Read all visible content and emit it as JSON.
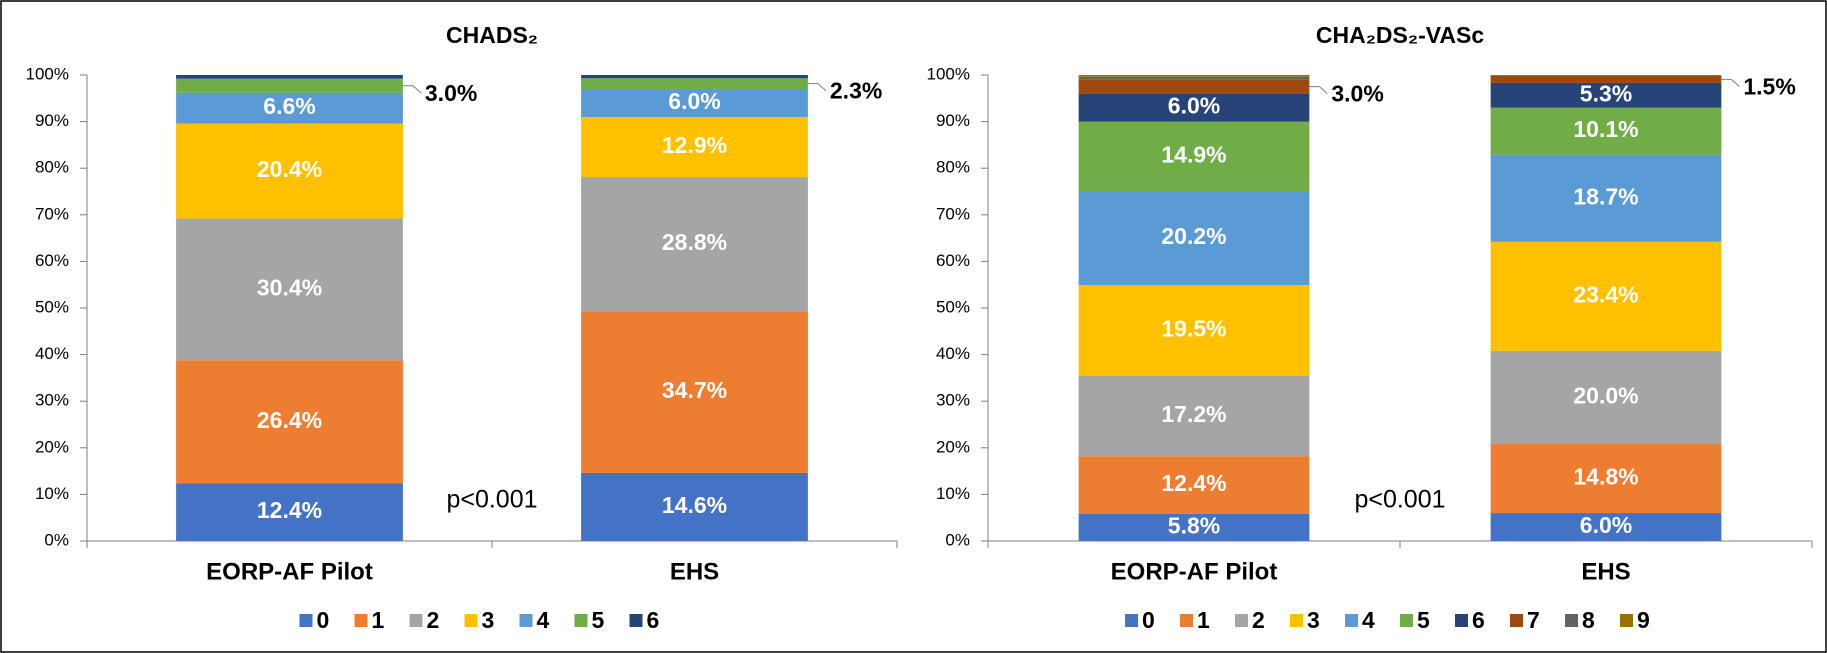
{
  "chart_data": [
    {
      "type": "stacked-bar",
      "title": "CHADS₂",
      "annotation": "p<0.001",
      "categories": [
        "EORP-AF Pilot",
        "EHS"
      ],
      "ylim": [
        0,
        100
      ],
      "yticks": [
        {
          "value": 0,
          "label": "0%"
        },
        {
          "value": 10,
          "label": "10%"
        },
        {
          "value": 20,
          "label": "20%"
        },
        {
          "value": 30,
          "label": "30%"
        },
        {
          "value": 40,
          "label": "40%"
        },
        {
          "value": 50,
          "label": "50%"
        },
        {
          "value": 60,
          "label": "60%"
        },
        {
          "value": 70,
          "label": "70%"
        },
        {
          "value": 80,
          "label": "80%"
        },
        {
          "value": 90,
          "label": "90%"
        },
        {
          "value": 100,
          "label": "100%"
        }
      ],
      "series": [
        {
          "name": "0",
          "color": "#4472c4",
          "values": [
            12.4,
            14.6
          ],
          "value_labels": [
            "12.4%",
            "14.6%"
          ]
        },
        {
          "name": "1",
          "color": "#ed7d31",
          "values": [
            26.4,
            34.7
          ],
          "value_labels": [
            "26.4%",
            "34.7%"
          ]
        },
        {
          "name": "2",
          "color": "#a5a5a5",
          "values": [
            30.4,
            28.8
          ],
          "value_labels": [
            "30.4%",
            "28.8%"
          ]
        },
        {
          "name": "3",
          "color": "#ffc000",
          "values": [
            20.4,
            12.9
          ],
          "value_labels": [
            "20.4%",
            "12.9%"
          ]
        },
        {
          "name": "4",
          "color": "#5b9bd5",
          "values": [
            6.6,
            6.0
          ],
          "value_labels": [
            "6.6%",
            "6.0%"
          ]
        },
        {
          "name": "5",
          "color": "#70ad47",
          "values": [
            3.0,
            2.3
          ],
          "value_labels": [
            "3.0%",
            "2.3%"
          ]
        },
        {
          "name": "6",
          "color": "#264478",
          "values": [
            0.8,
            0.7
          ],
          "value_labels": [
            null,
            null
          ]
        }
      ]
    },
    {
      "type": "stacked-bar",
      "title": "CHA₂DS₂-VASc",
      "annotation": "p<0.001",
      "categories": [
        "EORP-AF Pilot",
        "EHS"
      ],
      "ylim": [
        0,
        100
      ],
      "yticks": [
        {
          "value": 0,
          "label": "0%"
        },
        {
          "value": 10,
          "label": "10%"
        },
        {
          "value": 20,
          "label": "20%"
        },
        {
          "value": 30,
          "label": "30%"
        },
        {
          "value": 40,
          "label": "40%"
        },
        {
          "value": 50,
          "label": "50%"
        },
        {
          "value": 60,
          "label": "60%"
        },
        {
          "value": 70,
          "label": "70%"
        },
        {
          "value": 80,
          "label": "80%"
        },
        {
          "value": 90,
          "label": "90%"
        },
        {
          "value": 100,
          "label": "100%"
        }
      ],
      "series": [
        {
          "name": "0",
          "color": "#4472c4",
          "values": [
            5.8,
            6.0
          ],
          "value_labels": [
            "5.8%",
            "6.0%"
          ]
        },
        {
          "name": "1",
          "color": "#ed7d31",
          "values": [
            12.4,
            14.8
          ],
          "value_labels": [
            "12.4%",
            "14.8%"
          ]
        },
        {
          "name": "2",
          "color": "#a5a5a5",
          "values": [
            17.2,
            20.0
          ],
          "value_labels": [
            "17.2%",
            "20.0%"
          ]
        },
        {
          "name": "3",
          "color": "#ffc000",
          "values": [
            19.5,
            23.4
          ],
          "value_labels": [
            "19.5%",
            "23.4%"
          ]
        },
        {
          "name": "4",
          "color": "#5b9bd5",
          "values": [
            20.2,
            18.7
          ],
          "value_labels": [
            "20.2%",
            "18.7%"
          ]
        },
        {
          "name": "5",
          "color": "#70ad47",
          "values": [
            14.9,
            10.1
          ],
          "value_labels": [
            "14.9%",
            "10.1%"
          ]
        },
        {
          "name": "6",
          "color": "#264478",
          "values": [
            6.0,
            5.3
          ],
          "value_labels": [
            "6.0%",
            "5.3%"
          ]
        },
        {
          "name": "7",
          "color": "#9e480e",
          "values": [
            3.0,
            1.5
          ],
          "value_labels": [
            "3.0%",
            "1.5%"
          ]
        },
        {
          "name": "8",
          "color": "#636363",
          "values": [
            0.6,
            0.1
          ],
          "value_labels": [
            null,
            null
          ]
        },
        {
          "name": "9",
          "color": "#997300",
          "values": [
            0.4,
            0.1
          ],
          "value_labels": [
            null,
            null
          ]
        }
      ]
    }
  ]
}
